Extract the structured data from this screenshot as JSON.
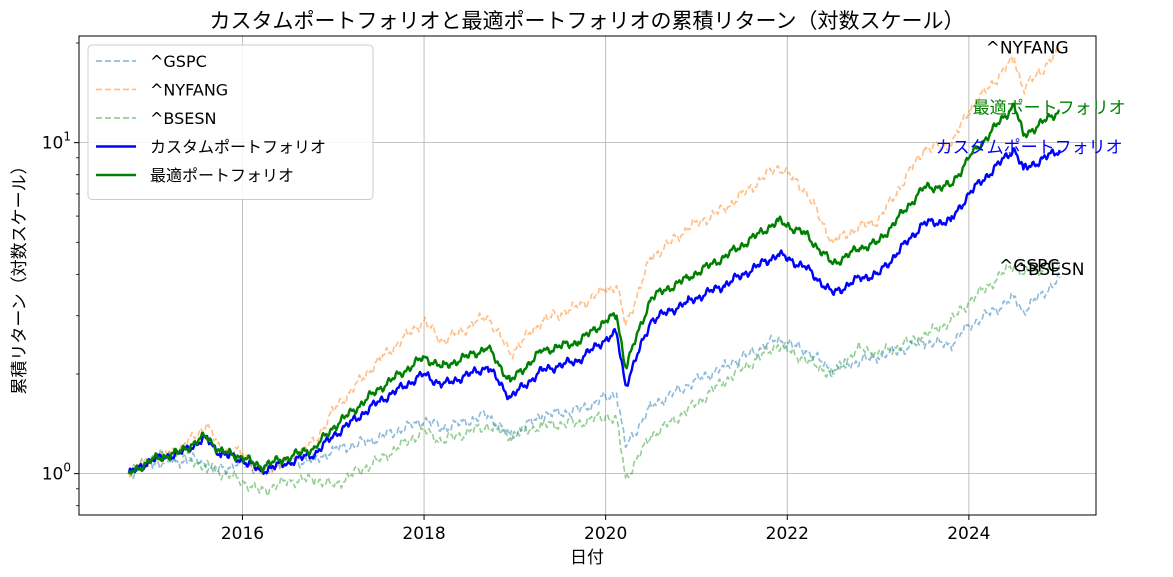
{
  "chart_data": {
    "type": "line",
    "title": "カスタムポートフォリオと最適ポートフォリオの累積リターン（対数スケール）",
    "xlabel": "日付",
    "ylabel": "累積リターン（対数スケール）",
    "yscale": "log",
    "xlim": [
      2014.2,
      2025.4
    ],
    "ylim": [
      0.75,
      21
    ],
    "x_ticks": [
      2016,
      2018,
      2020,
      2022,
      2024
    ],
    "x_tick_labels": [
      "2016",
      "2018",
      "2020",
      "2022",
      "2024"
    ],
    "y_ticks": [
      1,
      10
    ],
    "y_tick_labels": [
      "10^0",
      "10^1"
    ],
    "grid": true,
    "legend_position": "top-left",
    "series": [
      {
        "name": "^GSPC",
        "color": "#1f77b4",
        "style": "dashed",
        "x": [
          2014.75,
          2015.0,
          2015.3,
          2015.5,
          2015.7,
          2016.0,
          2016.2,
          2016.5,
          2016.8,
          2017.0,
          2017.5,
          2018.0,
          2018.2,
          2018.7,
          2018.95,
          2019.3,
          2019.7,
          2020.0,
          2020.12,
          2020.22,
          2020.5,
          2020.9,
          2021.3,
          2021.9,
          2022.2,
          2022.5,
          2022.8,
          2023.0,
          2023.5,
          2023.8,
          2024.0,
          2024.5,
          2024.6,
          2025.0
        ],
        "values": [
          1.0,
          1.07,
          1.09,
          1.1,
          1.02,
          1.08,
          1.03,
          1.08,
          1.1,
          1.18,
          1.28,
          1.45,
          1.37,
          1.5,
          1.3,
          1.5,
          1.55,
          1.7,
          1.75,
          1.2,
          1.6,
          1.85,
          2.1,
          2.55,
          2.35,
          2.05,
          2.2,
          2.25,
          2.5,
          2.45,
          2.8,
          3.4,
          3.1,
          3.9
        ]
      },
      {
        "name": "^NYFANG",
        "color": "#ff7f0e",
        "style": "dashed",
        "x": [
          2014.75,
          2015.0,
          2015.3,
          2015.6,
          2015.75,
          2016.0,
          2016.2,
          2016.5,
          2016.8,
          2017.0,
          2017.5,
          2018.0,
          2018.2,
          2018.7,
          2018.95,
          2019.3,
          2019.7,
          2020.0,
          2020.12,
          2020.22,
          2020.5,
          2020.9,
          2021.3,
          2021.9,
          2022.2,
          2022.5,
          2022.8,
          2023.0,
          2023.5,
          2023.8,
          2024.0,
          2024.5,
          2024.6,
          2025.0
        ],
        "values": [
          1.0,
          1.1,
          1.18,
          1.4,
          1.2,
          1.15,
          1.0,
          1.1,
          1.25,
          1.55,
          2.2,
          2.9,
          2.5,
          3.0,
          2.3,
          2.9,
          3.2,
          3.6,
          3.7,
          2.8,
          4.5,
          5.5,
          6.3,
          8.5,
          7.2,
          5.0,
          5.6,
          5.8,
          9.5,
          9.8,
          12.5,
          18.0,
          14.5,
          19.0
        ]
      },
      {
        "name": "^BSESN",
        "color": "#2ca02c",
        "style": "dashed",
        "x": [
          2014.75,
          2015.0,
          2015.3,
          2015.6,
          2015.8,
          2016.0,
          2016.2,
          2016.5,
          2016.8,
          2017.0,
          2017.5,
          2018.0,
          2018.2,
          2018.7,
          2018.95,
          2019.3,
          2019.7,
          2020.0,
          2020.12,
          2020.22,
          2020.5,
          2020.9,
          2021.3,
          2021.9,
          2022.2,
          2022.5,
          2022.8,
          2023.0,
          2023.5,
          2023.8,
          2024.0,
          2024.5,
          2024.6,
          2025.0
        ],
        "values": [
          1.0,
          1.12,
          1.15,
          1.05,
          1.0,
          0.95,
          0.88,
          0.95,
          0.96,
          0.92,
          1.1,
          1.35,
          1.25,
          1.4,
          1.3,
          1.4,
          1.42,
          1.5,
          1.45,
          0.97,
          1.3,
          1.55,
          1.9,
          2.45,
          2.2,
          2.0,
          2.4,
          2.3,
          2.6,
          2.9,
          3.3,
          4.3,
          4.0,
          4.3
        ]
      },
      {
        "name": "カスタムポートフォリオ",
        "color": "#0000ff",
        "style": "solid",
        "x": [
          2014.75,
          2015.0,
          2015.3,
          2015.6,
          2015.75,
          2016.0,
          2016.2,
          2016.5,
          2016.8,
          2017.0,
          2017.5,
          2018.0,
          2018.2,
          2018.7,
          2018.95,
          2019.3,
          2019.7,
          2020.0,
          2020.12,
          2020.22,
          2020.5,
          2020.9,
          2021.3,
          2021.9,
          2022.2,
          2022.5,
          2022.8,
          2023.0,
          2023.5,
          2023.8,
          2024.0,
          2024.5,
          2024.6,
          2025.0
        ],
        "values": [
          1.0,
          1.1,
          1.15,
          1.28,
          1.15,
          1.1,
          1.02,
          1.08,
          1.15,
          1.3,
          1.65,
          2.0,
          1.85,
          2.1,
          1.7,
          2.05,
          2.2,
          2.55,
          2.65,
          1.85,
          2.9,
          3.3,
          3.7,
          4.6,
          4.2,
          3.5,
          3.9,
          4.0,
          5.7,
          5.8,
          7.0,
          9.6,
          8.3,
          9.5
        ]
      },
      {
        "name": "最適ポートフォリオ",
        "color": "#008000",
        "style": "solid",
        "x": [
          2014.75,
          2015.0,
          2015.3,
          2015.6,
          2015.75,
          2016.0,
          2016.2,
          2016.5,
          2016.8,
          2017.0,
          2017.5,
          2018.0,
          2018.2,
          2018.7,
          2018.95,
          2019.3,
          2019.7,
          2020.0,
          2020.12,
          2020.22,
          2020.5,
          2020.9,
          2021.3,
          2021.9,
          2022.2,
          2022.5,
          2022.8,
          2023.0,
          2023.5,
          2023.8,
          2024.0,
          2024.5,
          2024.6,
          2025.0
        ],
        "values": [
          1.0,
          1.1,
          1.16,
          1.3,
          1.17,
          1.12,
          1.05,
          1.12,
          1.2,
          1.38,
          1.8,
          2.25,
          2.1,
          2.4,
          1.9,
          2.35,
          2.5,
          2.9,
          3.0,
          2.1,
          3.4,
          3.9,
          4.5,
          5.8,
          5.3,
          4.3,
          4.8,
          5.0,
          7.3,
          7.4,
          9.0,
          13.0,
          10.5,
          12.5
        ]
      }
    ],
    "annotations": [
      {
        "text": "^NYFANG",
        "x": 2024.95,
        "y": 19.0,
        "color": "#000000"
      },
      {
        "text": "最適ポートフォリオ",
        "x": 2024.95,
        "y": 12.5,
        "color": "#008000"
      },
      {
        "text": "カスタムポートフォリオ",
        "x": 2024.95,
        "y": 9.5,
        "color": "#0000ff"
      },
      {
        "text": "^GSPC",
        "x": 2024.95,
        "y": 4.25,
        "color": "#000000"
      },
      {
        "text": "^BSESN",
        "x": 2024.95,
        "y": 4.15,
        "color": "#000000"
      }
    ]
  }
}
